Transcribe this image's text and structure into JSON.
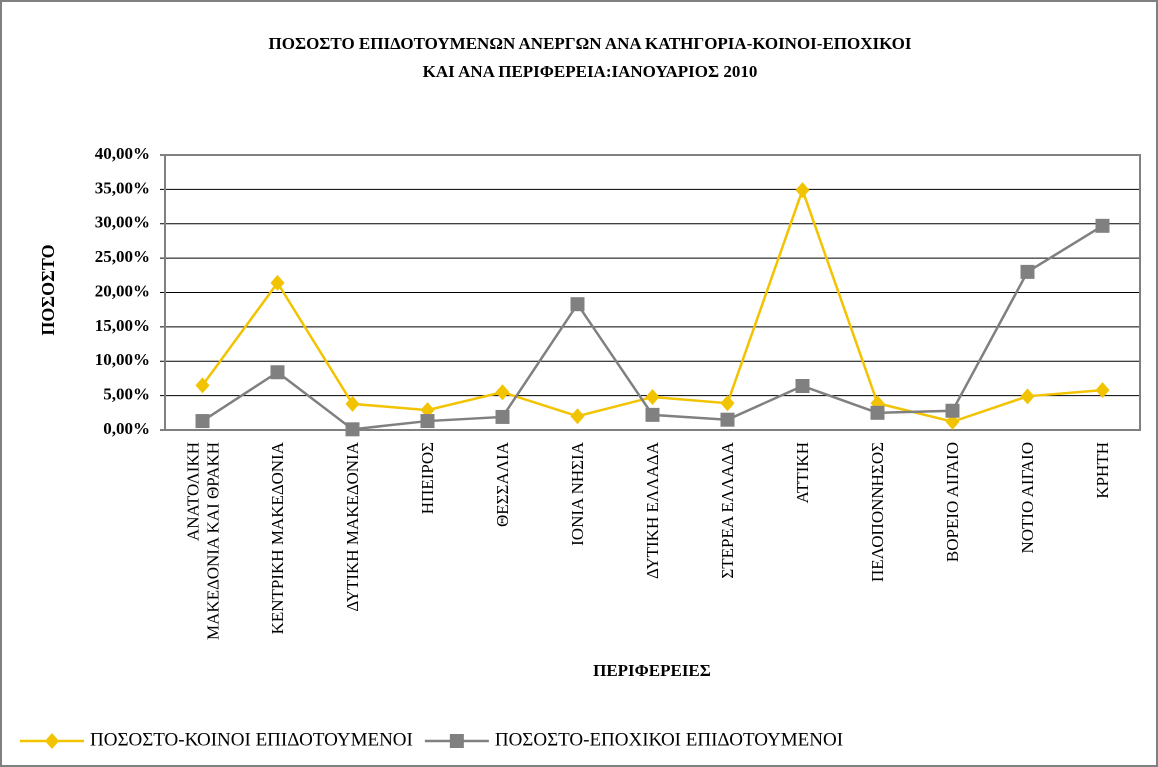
{
  "chart_data": {
    "type": "line",
    "title": [
      "ΠΟΣΟΣΤΟ ΕΠΙΔΟΤΟΥΜΕΝΩΝ ΑΝΕΡΓΩΝ ΑΝΑ ΚΑΤΗΓΟΡΙΑ-ΚΟΙΝΟΙ-ΕΠΟΧΙΚΟΙ",
      "ΚΑΙ ΑΝΑ ΠΕΡΙΦΕΡΕΙΑ:ΙΑΝΟΥΑΡΙΟΣ 2010"
    ],
    "x_label": "ΠΕΡΙΦΕΡΕΙΕΣ",
    "y_label": "ΠΟΣΟΣΤΟ",
    "categories": [
      "ΑΝΑΤΟΛΙΚΗ ΜΑΚΕΔΟΝΙΑ ΚΑΙ ΘΡΑΚΗ",
      "ΚΕΝΤΡΙΚΗ ΜΑΚΕΔΟΝΙΑ",
      "ΔΥΤΙΚΗ ΜΑΚΕΔΟΝΙΑ",
      "ΗΠΕΙΡΟΣ",
      "ΘΕΣΣΑΛΙΑ",
      "ΙΟΝΙΑ ΝΗΣΙΑ",
      "ΔΥΤΙΚΗ ΕΛΛΑΔΑ",
      "ΣΤΕΡΕΑ ΕΛΛΑΔΑ",
      "ΑΤΤΙΚΗ",
      "ΠΕΛΟΠΟΝΝΗΣΟΣ",
      "ΒΟΡΕΙΟ ΑΙΓΑΙΟ",
      "ΝΟΤΙΟ ΑΙΓΑΙΟ",
      "ΚΡΗΤΗ"
    ],
    "series": [
      {
        "name": "ΠΟΣΟΣΤΟ-ΚΟΙΝΟΙ ΕΠΙΔΟΤΟΥΜΕΝΟΙ",
        "color": "#f2c300",
        "marker": "diamond",
        "values": [
          6.5,
          21.4,
          3.8,
          2.9,
          5.5,
          2.0,
          4.8,
          3.9,
          34.9,
          3.9,
          1.2,
          4.9,
          5.8
        ]
      },
      {
        "name": "ΠΟΣΟΣΤΟ-ΕΠΟΧΙΚΟΙ ΕΠΙΔΟΤΟΥΜΕΝΟΙ",
        "color": "#808080",
        "marker": "square",
        "values": [
          1.3,
          8.4,
          0.1,
          1.3,
          1.9,
          18.3,
          2.2,
          1.5,
          6.4,
          2.5,
          2.8,
          23.0,
          29.7
        ]
      }
    ],
    "ylim": [
      0,
      40
    ],
    "yticks": [
      {
        "value": 0,
        "label": "0,00%"
      },
      {
        "value": 5,
        "label": "5,00%"
      },
      {
        "value": 10,
        "label": "10,00%"
      },
      {
        "value": 15,
        "label": "15,00%"
      },
      {
        "value": 20,
        "label": "20,00%"
      },
      {
        "value": 25,
        "label": "25,00%"
      },
      {
        "value": 30,
        "label": "30,00%"
      },
      {
        "value": 35,
        "label": "35,00%"
      },
      {
        "value": 40,
        "label": "40,00%"
      }
    ],
    "grid": true,
    "legend": "bottom"
  }
}
